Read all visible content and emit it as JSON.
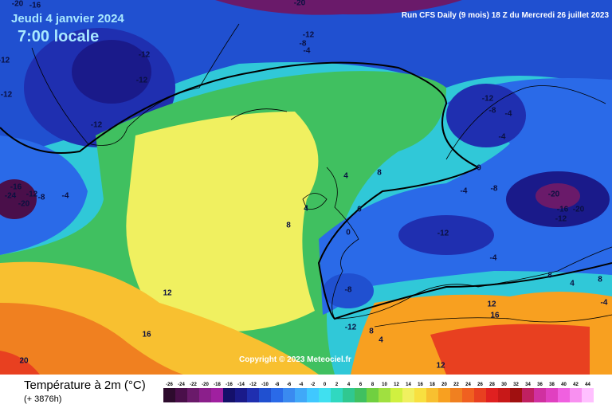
{
  "header": {
    "date": "Jeudi 4 janvier 2024",
    "time": "7:00 locale",
    "run": "Run CFS Daily (9 mois) 18 Z du Mercredi 26 juillet 2023",
    "copyright": "Copyright © 2023 Meteociel.fr"
  },
  "footer": {
    "title": "Température à 2m (°C)",
    "lead": "(+ 3876h)"
  },
  "map": {
    "labels": [
      -20,
      -16,
      -20,
      -12,
      -8,
      -4,
      -12,
      -12,
      -12,
      -12,
      -12,
      -16,
      -24,
      -12,
      -8,
      -20,
      -4,
      8,
      4,
      8,
      4,
      0,
      0,
      -12,
      -8,
      -4,
      -4,
      0,
      -4,
      -8,
      -20,
      -16,
      -20,
      -12,
      -12,
      -4,
      8,
      4,
      8,
      -4,
      -8,
      12,
      16,
      20,
      12,
      16,
      -12,
      8,
      4,
      12
    ]
  },
  "scale": {
    "ticks": [
      -26,
      -24,
      -22,
      -20,
      -18,
      -16,
      -14,
      -12,
      -10,
      -8,
      -6,
      -4,
      -2,
      0,
      2,
      4,
      6,
      8,
      10,
      12,
      14,
      16,
      18,
      20,
      22,
      24,
      26,
      28,
      30,
      32,
      34,
      36,
      38,
      40,
      42,
      44
    ],
    "colors": [
      "#2d0b2d",
      "#4a0f4a",
      "#6a1a6a",
      "#8b1f8b",
      "#a020a0",
      "#14106a",
      "#1a1a8a",
      "#1f2fb0",
      "#2050d0",
      "#2a6ae8",
      "#3a8af0",
      "#40a8f8",
      "#40c8ff",
      "#40e0f0",
      "#30d8c0",
      "#30c890",
      "#40c060",
      "#70d040",
      "#a0e040",
      "#d0f040",
      "#f0f060",
      "#f8e040",
      "#f8c030",
      "#f8a020",
      "#f08020",
      "#f06020",
      "#e84020",
      "#e02020",
      "#c81818",
      "#a01010",
      "#c02060",
      "#d030a0",
      "#e040c0",
      "#f060e0",
      "#f890f0",
      "#ffc0ff"
    ]
  }
}
